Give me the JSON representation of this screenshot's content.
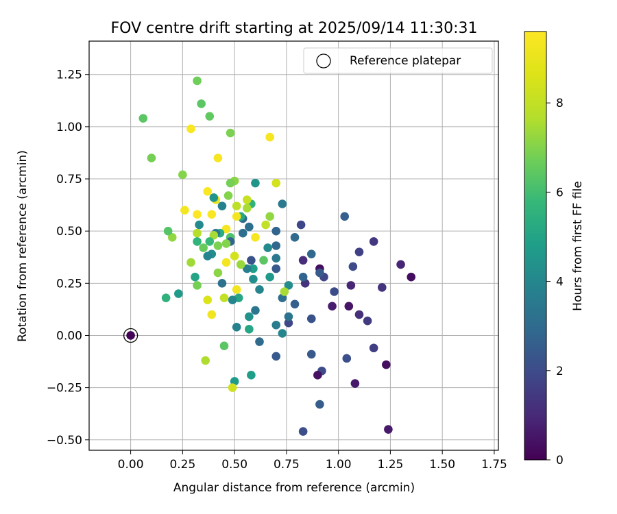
{
  "chart_data": {
    "type": "scatter",
    "title": "FOV centre drift starting at 2025/09/14 11:30:31",
    "xlabel": "Angular distance from reference (arcmin)",
    "ylabel": "Rotation from reference (arcmin)",
    "xlim": [
      -0.2,
      1.77
    ],
    "ylim": [
      -0.55,
      1.41
    ],
    "x_ticks": [
      "0.00",
      "0.25",
      "0.50",
      "0.75",
      "1.00",
      "1.25",
      "1.50",
      "1.75"
    ],
    "x_tick_values": [
      0,
      0.25,
      0.5,
      0.75,
      1.0,
      1.25,
      1.5,
      1.75
    ],
    "y_ticks": [
      "−0.50",
      "−0.25",
      "0.00",
      "0.25",
      "0.50",
      "0.75",
      "1.00",
      "1.25"
    ],
    "y_tick_values": [
      -0.5,
      -0.25,
      0,
      0.25,
      0.5,
      0.75,
      1.0,
      1.25
    ],
    "grid": true,
    "colormap": "viridis",
    "colorbar": {
      "label": "Hours from first FF file",
      "range": [
        0,
        9.6
      ],
      "ticks": [
        "0",
        "2",
        "4",
        "6",
        "8"
      ],
      "tick_values": [
        0,
        2,
        4,
        6,
        8
      ]
    },
    "legend": {
      "placement": "top-right",
      "entries": [
        "Reference platepar"
      ]
    },
    "reference_point": {
      "x": 0.0,
      "y": 0.0
    },
    "points": [
      {
        "x": 0.0,
        "y": 0.0,
        "h": 0.1
      },
      {
        "x": 1.35,
        "y": 0.28,
        "h": 0.3
      },
      {
        "x": 1.3,
        "y": 0.34,
        "h": 0.9
      },
      {
        "x": 1.24,
        "y": -0.45,
        "h": 0.6
      },
      {
        "x": 1.23,
        "y": -0.14,
        "h": 0.3
      },
      {
        "x": 1.21,
        "y": 0.23,
        "h": 1.3
      },
      {
        "x": 1.17,
        "y": 0.45,
        "h": 1.4
      },
      {
        "x": 1.17,
        "y": -0.06,
        "h": 1.6
      },
      {
        "x": 1.14,
        "y": 0.07,
        "h": 1.5
      },
      {
        "x": 1.1,
        "y": 0.4,
        "h": 1.7
      },
      {
        "x": 1.1,
        "y": 0.1,
        "h": 1.2
      },
      {
        "x": 1.08,
        "y": -0.23,
        "h": 0.6
      },
      {
        "x": 1.07,
        "y": 0.33,
        "h": 2.0
      },
      {
        "x": 1.06,
        "y": 0.24,
        "h": 0.9
      },
      {
        "x": 1.05,
        "y": 0.14,
        "h": 0.5
      },
      {
        "x": 1.04,
        "y": -0.11,
        "h": 2.1
      },
      {
        "x": 1.03,
        "y": 0.57,
        "h": 2.6
      },
      {
        "x": 0.98,
        "y": 0.21,
        "h": 2.0
      },
      {
        "x": 0.97,
        "y": 0.14,
        "h": 0.7
      },
      {
        "x": 0.93,
        "y": 0.28,
        "h": 1.8
      },
      {
        "x": 0.92,
        "y": -0.17,
        "h": 2.0
      },
      {
        "x": 0.91,
        "y": 0.32,
        "h": 0.3
      },
      {
        "x": 0.91,
        "y": 0.3,
        "h": 2.4
      },
      {
        "x": 0.91,
        "y": -0.33,
        "h": 2.5
      },
      {
        "x": 0.9,
        "y": -0.19,
        "h": 0.4
      },
      {
        "x": 0.87,
        "y": 0.39,
        "h": 2.9
      },
      {
        "x": 0.87,
        "y": 0.08,
        "h": 2.2
      },
      {
        "x": 0.87,
        "y": -0.09,
        "h": 2.4
      },
      {
        "x": 0.84,
        "y": 0.25,
        "h": 1.3
      },
      {
        "x": 0.83,
        "y": 0.36,
        "h": 1.1
      },
      {
        "x": 0.83,
        "y": 0.28,
        "h": 2.8
      },
      {
        "x": 0.83,
        "y": -0.46,
        "h": 2.1
      },
      {
        "x": 0.82,
        "y": 0.53,
        "h": 1.9
      },
      {
        "x": 0.79,
        "y": 0.15,
        "h": 2.6
      },
      {
        "x": 0.79,
        "y": 0.47,
        "h": 3.0
      },
      {
        "x": 0.76,
        "y": 0.06,
        "h": 1.9
      },
      {
        "x": 0.76,
        "y": 0.24,
        "h": 4.2
      },
      {
        "x": 0.76,
        "y": 0.09,
        "h": 3.3
      },
      {
        "x": 0.73,
        "y": 0.63,
        "h": 3.5
      },
      {
        "x": 0.73,
        "y": 0.18,
        "h": 3.1
      },
      {
        "x": 0.73,
        "y": 0.01,
        "h": 4.0
      },
      {
        "x": 0.74,
        "y": 0.21,
        "h": 7.5
      },
      {
        "x": 0.7,
        "y": 0.5,
        "h": 2.8
      },
      {
        "x": 0.7,
        "y": 0.43,
        "h": 2.9
      },
      {
        "x": 0.7,
        "y": 0.37,
        "h": 3.5
      },
      {
        "x": 0.7,
        "y": 0.32,
        "h": 2.4
      },
      {
        "x": 0.7,
        "y": 0.05,
        "h": 3.6
      },
      {
        "x": 0.7,
        "y": -0.1,
        "h": 2.4
      },
      {
        "x": 0.7,
        "y": 0.73,
        "h": 8.4
      },
      {
        "x": 0.67,
        "y": 0.95,
        "h": 9.4
      },
      {
        "x": 0.67,
        "y": 0.57,
        "h": 7.2
      },
      {
        "x": 0.67,
        "y": 0.28,
        "h": 4.6
      },
      {
        "x": 0.66,
        "y": 0.42,
        "h": 4.1
      },
      {
        "x": 0.65,
        "y": 0.53,
        "h": 8.0
      },
      {
        "x": 0.64,
        "y": 0.36,
        "h": 6.4
      },
      {
        "x": 0.62,
        "y": 0.22,
        "h": 3.9
      },
      {
        "x": 0.62,
        "y": -0.03,
        "h": 3.0
      },
      {
        "x": 0.6,
        "y": 0.73,
        "h": 4.5
      },
      {
        "x": 0.6,
        "y": 0.47,
        "h": 9.4
      },
      {
        "x": 0.6,
        "y": 0.12,
        "h": 3.4
      },
      {
        "x": 0.59,
        "y": 0.32,
        "h": 4.8
      },
      {
        "x": 0.59,
        "y": 0.27,
        "h": 4.3
      },
      {
        "x": 0.58,
        "y": 0.36,
        "h": 2.2
      },
      {
        "x": 0.58,
        "y": 0.63,
        "h": 5.6
      },
      {
        "x": 0.58,
        "y": -0.19,
        "h": 4.8
      },
      {
        "x": 0.57,
        "y": 0.52,
        "h": 3.1
      },
      {
        "x": 0.57,
        "y": 0.09,
        "h": 4.4
      },
      {
        "x": 0.57,
        "y": 0.03,
        "h": 5.1
      },
      {
        "x": 0.56,
        "y": 0.65,
        "h": 8.1
      },
      {
        "x": 0.56,
        "y": 0.61,
        "h": 7.5
      },
      {
        "x": 0.56,
        "y": 0.32,
        "h": 3.7
      },
      {
        "x": 0.54,
        "y": 0.56,
        "h": 3.0
      },
      {
        "x": 0.54,
        "y": 0.49,
        "h": 3.1
      },
      {
        "x": 0.53,
        "y": 0.57,
        "h": 5.2
      },
      {
        "x": 0.53,
        "y": 0.34,
        "h": 8.0
      },
      {
        "x": 0.53,
        "y": 0.34,
        "h": 7.3
      },
      {
        "x": 0.52,
        "y": 0.18,
        "h": 5.1
      },
      {
        "x": 0.51,
        "y": 0.04,
        "h": 3.8
      },
      {
        "x": 0.51,
        "y": 0.22,
        "h": 9.2
      },
      {
        "x": 0.51,
        "y": 0.57,
        "h": 9.3
      },
      {
        "x": 0.51,
        "y": 0.62,
        "h": 7.9
      },
      {
        "x": 0.5,
        "y": 0.74,
        "h": 7.1
      },
      {
        "x": 0.5,
        "y": 0.38,
        "h": 8.4
      },
      {
        "x": 0.5,
        "y": -0.22,
        "h": 4.7
      },
      {
        "x": 0.49,
        "y": 0.17,
        "h": 4.0
      },
      {
        "x": 0.49,
        "y": -0.25,
        "h": 8.3
      },
      {
        "x": 0.48,
        "y": 0.73,
        "h": 6.8
      },
      {
        "x": 0.48,
        "y": 0.97,
        "h": 6.9
      },
      {
        "x": 0.48,
        "y": 0.47,
        "h": 6.2
      },
      {
        "x": 0.48,
        "y": 0.45,
        "h": 2.8
      },
      {
        "x": 0.47,
        "y": 0.67,
        "h": 7.0
      },
      {
        "x": 0.46,
        "y": 0.44,
        "h": 7.0
      },
      {
        "x": 0.46,
        "y": 0.35,
        "h": 9.3
      },
      {
        "x": 0.46,
        "y": 0.51,
        "h": 9.4
      },
      {
        "x": 0.45,
        "y": 0.18,
        "h": 8.0
      },
      {
        "x": 0.45,
        "y": -0.05,
        "h": 6.4
      },
      {
        "x": 0.44,
        "y": 0.62,
        "h": 3.8
      },
      {
        "x": 0.44,
        "y": 0.25,
        "h": 3.2
      },
      {
        "x": 0.43,
        "y": 0.49,
        "h": 5.3
      },
      {
        "x": 0.42,
        "y": 0.85,
        "h": 9.4
      },
      {
        "x": 0.42,
        "y": 0.43,
        "h": 6.9
      },
      {
        "x": 0.42,
        "y": 0.3,
        "h": 7.1
      },
      {
        "x": 0.41,
        "y": 0.65,
        "h": 9.0
      },
      {
        "x": 0.41,
        "y": 0.49,
        "h": 3.4
      },
      {
        "x": 0.4,
        "y": 0.66,
        "h": 4.5
      },
      {
        "x": 0.4,
        "y": 0.48,
        "h": 7.5
      },
      {
        "x": 0.39,
        "y": 0.58,
        "h": 9.5
      },
      {
        "x": 0.39,
        "y": 0.1,
        "h": 9.2
      },
      {
        "x": 0.39,
        "y": 0.39,
        "h": 4.2
      },
      {
        "x": 0.38,
        "y": 0.45,
        "h": 5.8
      },
      {
        "x": 0.38,
        "y": 1.05,
        "h": 6.5
      },
      {
        "x": 0.37,
        "y": 0.69,
        "h": 9.5
      },
      {
        "x": 0.37,
        "y": 0.17,
        "h": 8.6
      },
      {
        "x": 0.37,
        "y": 0.38,
        "h": 3.9
      },
      {
        "x": 0.36,
        "y": -0.12,
        "h": 7.6
      },
      {
        "x": 0.35,
        "y": 0.42,
        "h": 6.6
      },
      {
        "x": 0.34,
        "y": 1.11,
        "h": 6.4
      },
      {
        "x": 0.33,
        "y": 0.53,
        "h": 4.1
      },
      {
        "x": 0.32,
        "y": 1.22,
        "h": 6.7
      },
      {
        "x": 0.32,
        "y": 0.58,
        "h": 9.6
      },
      {
        "x": 0.32,
        "y": 0.49,
        "h": 7.7
      },
      {
        "x": 0.32,
        "y": 0.45,
        "h": 5.6
      },
      {
        "x": 0.32,
        "y": 0.24,
        "h": 6.8
      },
      {
        "x": 0.31,
        "y": 0.28,
        "h": 5.0
      },
      {
        "x": 0.29,
        "y": 0.99,
        "h": 9.5
      },
      {
        "x": 0.29,
        "y": 0.35,
        "h": 7.4
      },
      {
        "x": 0.26,
        "y": 0.6,
        "h": 9.3
      },
      {
        "x": 0.25,
        "y": 0.77,
        "h": 7.0
      },
      {
        "x": 0.23,
        "y": 0.2,
        "h": 4.7
      },
      {
        "x": 0.2,
        "y": 0.47,
        "h": 7.2
      },
      {
        "x": 0.18,
        "y": 0.5,
        "h": 6.3
      },
      {
        "x": 0.17,
        "y": 0.18,
        "h": 5.5
      },
      {
        "x": 0.1,
        "y": 0.85,
        "h": 6.8
      },
      {
        "x": 0.06,
        "y": 1.04,
        "h": 6.4
      }
    ]
  }
}
